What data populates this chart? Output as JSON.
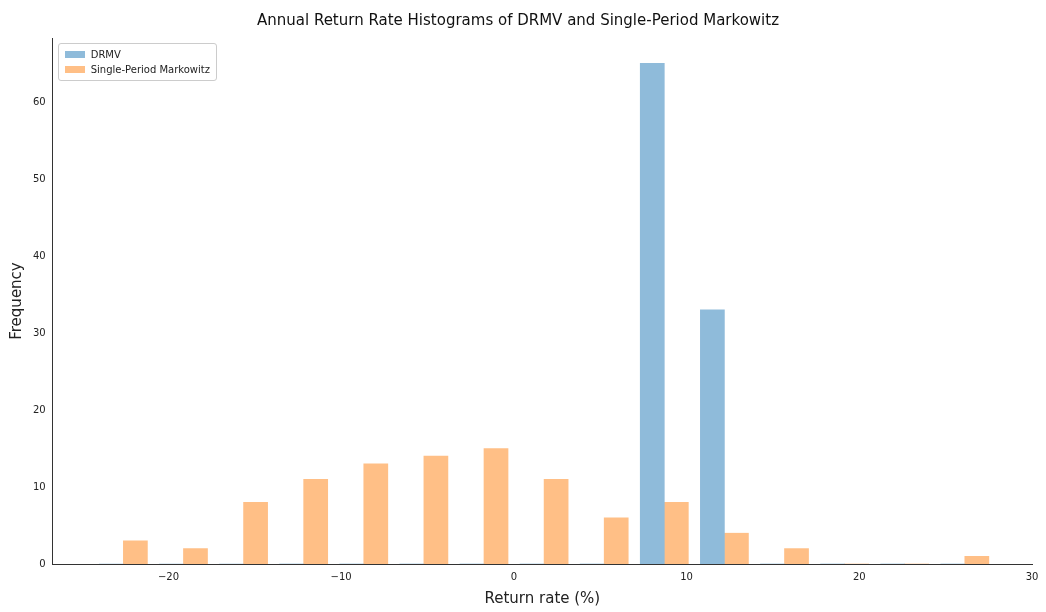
{
  "chart_data": {
    "type": "histogram",
    "title": "Annual Return Rate Histograms of DRMV and Single-Period Markowitz",
    "xlabel": "Return rate (%)",
    "ylabel": "Frequency",
    "bins": [
      -24.35,
      -20.87,
      -17.39,
      -13.91,
      -10.43,
      -6.95,
      -3.47,
      0.01,
      3.49,
      6.97,
      10.45,
      13.93,
      17.41,
      20.89,
      24.37,
      27.85
    ],
    "series": [
      {
        "name": "DRMV",
        "color": "#8fbbda",
        "values": [
          0,
          0,
          0,
          0,
          0,
          0,
          0,
          0,
          0,
          65,
          33,
          0,
          0,
          0,
          0
        ]
      },
      {
        "name": "Single-Period Markowitz",
        "color": "#ffbf86",
        "values": [
          3,
          2,
          8,
          11,
          13,
          14,
          15,
          11,
          6,
          8,
          4,
          2,
          0,
          0,
          1
        ]
      }
    ],
    "xlim": [
      -26.7,
      30
    ],
    "xticks": [
      {
        "value": -20,
        "label": "−20"
      },
      {
        "value": -10,
        "label": "−10"
      },
      0,
      10,
      20,
      30
    ],
    "ylim": [
      0,
      68.3
    ],
    "yticks": [
      0,
      10,
      20,
      30,
      40,
      50,
      60
    ],
    "legend": "top left",
    "grid": false
  }
}
